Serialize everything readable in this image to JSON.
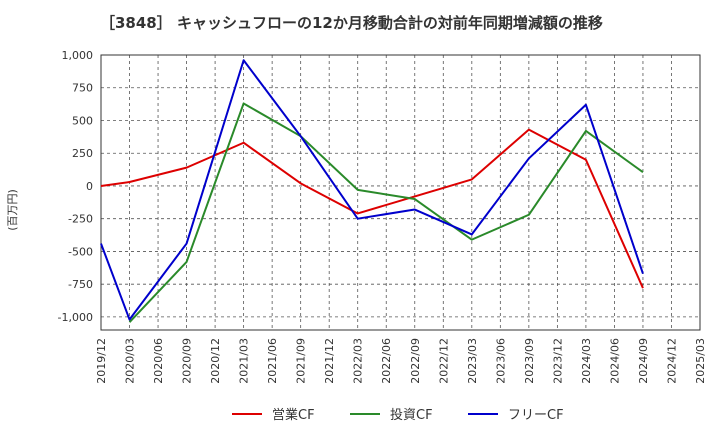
{
  "chart_data": {
    "type": "line",
    "title": "［3848］ キャッシュフローの12か月移動合計の対前年同期増減額の推移",
    "ylabel": "(百万円)",
    "xlabel": "",
    "ylim": [
      -1100,
      1000
    ],
    "grid": true,
    "legend_position": "bottom",
    "y_ticks": [
      1000,
      750,
      500,
      250,
      0,
      -250,
      -500,
      -750,
      -1000
    ],
    "y_tick_labels": [
      "1,000",
      "750",
      "500",
      "250",
      "0",
      "-250",
      "-500",
      "-750",
      "-1,000"
    ],
    "x_tick_labels": [
      "2019/12",
      "2020/03",
      "2020/06",
      "2020/09",
      "2020/12",
      "2021/03",
      "2021/06",
      "2021/09",
      "2021/12",
      "2022/03",
      "2022/06",
      "2022/09",
      "2022/12",
      "2023/03",
      "2023/06",
      "2023/09",
      "2023/12",
      "2024/03",
      "2024/06",
      "2024/09",
      "2024/12",
      "2025/03"
    ],
    "series": [
      {
        "name": "営業CF",
        "color": "#dd0000",
        "points": [
          {
            "x": "2019/12",
            "y": 0
          },
          {
            "x": "2020/03",
            "y": 30
          },
          {
            "x": "2020/09",
            "y": 140
          },
          {
            "x": "2021/03",
            "y": 330
          },
          {
            "x": "2021/09",
            "y": 20
          },
          {
            "x": "2022/03",
            "y": -210
          },
          {
            "x": "2022/09",
            "y": -80
          },
          {
            "x": "2023/03",
            "y": 50
          },
          {
            "x": "2023/09",
            "y": 430
          },
          {
            "x": "2024/03",
            "y": 200
          },
          {
            "x": "2024/09",
            "y": -780
          }
        ]
      },
      {
        "name": "投資CF",
        "color": "#2a8a2a",
        "points": [
          {
            "x": "2020/03",
            "y": -1040
          },
          {
            "x": "2020/09",
            "y": -580
          },
          {
            "x": "2021/03",
            "y": 630
          },
          {
            "x": "2021/09",
            "y": 380
          },
          {
            "x": "2022/03",
            "y": -30
          },
          {
            "x": "2022/09",
            "y": -100
          },
          {
            "x": "2023/03",
            "y": -410
          },
          {
            "x": "2023/09",
            "y": -220
          },
          {
            "x": "2024/03",
            "y": 420
          },
          {
            "x": "2024/09",
            "y": 105
          }
        ]
      },
      {
        "name": "フリーCF",
        "color": "#0000cc",
        "points": [
          {
            "x": "2019/12",
            "y": -440
          },
          {
            "x": "2020/03",
            "y": -1020
          },
          {
            "x": "2020/09",
            "y": -440
          },
          {
            "x": "2021/03",
            "y": 960
          },
          {
            "x": "2021/09",
            "y": 380
          },
          {
            "x": "2022/03",
            "y": -250
          },
          {
            "x": "2022/09",
            "y": -180
          },
          {
            "x": "2023/03",
            "y": -370
          },
          {
            "x": "2023/09",
            "y": 210
          },
          {
            "x": "2024/03",
            "y": 620
          },
          {
            "x": "2024/09",
            "y": -670
          }
        ]
      }
    ]
  }
}
